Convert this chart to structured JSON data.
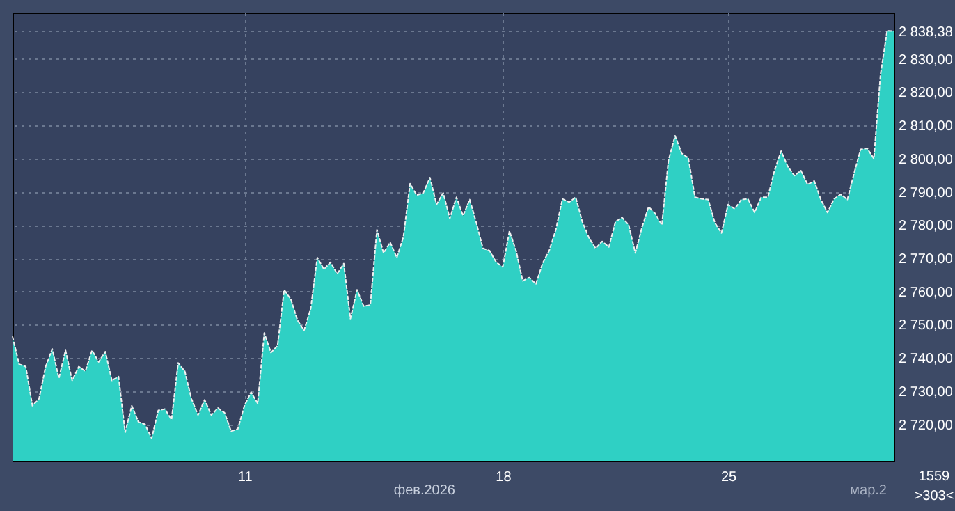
{
  "chart_data": {
    "type": "area",
    "categories": [
      null,
      null,
      null,
      null,
      null,
      null,
      null,
      null,
      null,
      null,
      null,
      null,
      null,
      null,
      null,
      null,
      null,
      null,
      null,
      null,
      null,
      null,
      null,
      null,
      null,
      null,
      null,
      null,
      null,
      null,
      null,
      null,
      null,
      null,
      null,
      "11",
      null,
      null,
      null,
      null,
      null,
      null,
      null,
      null,
      null,
      null,
      null,
      null,
      null,
      null,
      null,
      null,
      null,
      null,
      null,
      null,
      null,
      null,
      null,
      null,
      null,
      null,
      null,
      null,
      null,
      null,
      null,
      null,
      null,
      null,
      null,
      null,
      null,
      null,
      "18",
      null,
      null,
      null,
      null,
      null,
      null,
      null,
      null,
      null,
      null,
      null,
      null,
      null,
      null,
      null,
      null,
      null,
      null,
      null,
      null,
      null,
      null,
      null,
      null,
      null,
      null,
      null,
      null,
      null,
      null,
      null,
      null,
      null,
      "25",
      null,
      null,
      null,
      null,
      null,
      null,
      null,
      null,
      null,
      null,
      null,
      null,
      null,
      null,
      null,
      null,
      null,
      null,
      null,
      null,
      null,
      null,
      null,
      null,
      null
    ],
    "series": [
      {
        "color": "#2fd0c4",
        "values": [
          2746.5,
          2738.1,
          2737.4,
          2725.6,
          2727.7,
          2737.4,
          2742.7,
          2733.9,
          2742.3,
          2733.2,
          2737.4,
          2736.0,
          2742.3,
          2738.8,
          2741.9,
          2733.2,
          2734.4,
          2717.6,
          2725.6,
          2720.7,
          2720.0,
          2715.8,
          2724.2,
          2724.6,
          2721.4,
          2738.5,
          2736.0,
          2727.7,
          2722.8,
          2727.4,
          2722.8,
          2724.9,
          2723.5,
          2717.9,
          2718.6,
          2725.6,
          2729.7,
          2726.3,
          2747.5,
          2741.6,
          2743.7,
          2760.5,
          2757.7,
          2751.4,
          2748.3,
          2754.8,
          2770.2,
          2766.7,
          2768.8,
          2765.3,
          2768.4,
          2751.8,
          2760.5,
          2755.6,
          2755.9,
          2778.6,
          2771.6,
          2774.8,
          2770.2,
          2776.5,
          2792.5,
          2789.0,
          2789.7,
          2794.3,
          2786.2,
          2789.7,
          2782.0,
          2788.4,
          2782.8,
          2787.7,
          2780.7,
          2773.0,
          2772.3,
          2768.8,
          2767.4,
          2778.2,
          2772.3,
          2763.2,
          2764.2,
          2762.3,
          2768.5,
          2772.3,
          2778.6,
          2787.9,
          2786.9,
          2788.4,
          2781.0,
          2776.2,
          2773.0,
          2775.1,
          2773.4,
          2781.0,
          2782.3,
          2780.0,
          2771.6,
          2779.3,
          2785.5,
          2783.5,
          2780.0,
          2799.5,
          2806.9,
          2801.6,
          2800.2,
          2788.4,
          2787.9,
          2787.7,
          2780.7,
          2777.6,
          2786.2,
          2784.9,
          2787.7,
          2787.9,
          2783.8,
          2788.4,
          2788.4,
          2796.4,
          2802.3,
          2797.7,
          2794.9,
          2796.4,
          2792.2,
          2793.3,
          2787.7,
          2783.8,
          2787.9,
          2789.3,
          2787.7,
          2795.5,
          2802.8,
          2803.1,
          2800.0,
          2825.3,
          2838.5,
          2838.4
        ]
      }
    ],
    "ylim": [
      2709,
      2844
    ],
    "yticks": [
      {
        "value": 2720,
        "label": "2 720,00"
      },
      {
        "value": 2730,
        "label": "2 730,00"
      },
      {
        "value": 2740,
        "label": "2 740,00"
      },
      {
        "value": 2750,
        "label": "2 750,00"
      },
      {
        "value": 2760,
        "label": "2 760,00"
      },
      {
        "value": 2770,
        "label": "2 770,00"
      },
      {
        "value": 2780,
        "label": "2 780,00"
      },
      {
        "value": 2790,
        "label": "2 790,00"
      },
      {
        "value": 2800,
        "label": "2 800,00"
      },
      {
        "value": 2810,
        "label": "2 810,00"
      },
      {
        "value": 2820,
        "label": "2 820,00"
      },
      {
        "value": 2830,
        "label": "2 830,00"
      },
      {
        "value": 2838.38,
        "label": "2 838,38"
      }
    ],
    "grid": true,
    "annotations": [
      "фев.2026",
      "мар.2",
      "1559",
      ">303<"
    ]
  }
}
